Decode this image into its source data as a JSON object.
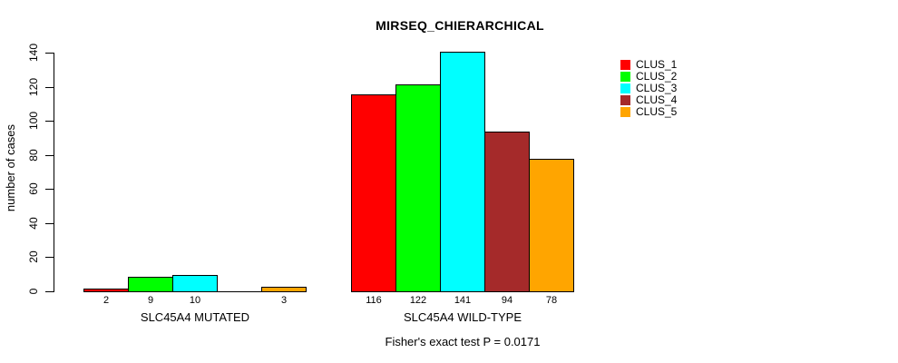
{
  "chart_data": {
    "type": "bar",
    "title": "MIRSEQ_CHIERARCHICAL",
    "ylabel": "number of cases",
    "xlabel": "",
    "ylim": [
      0,
      140
    ],
    "yticks": [
      0,
      20,
      40,
      60,
      80,
      100,
      120,
      140
    ],
    "grid": false,
    "legend_position": "top-right",
    "groups": [
      "SLC45A4 MUTATED",
      "SLC45A4 WILD-TYPE"
    ],
    "series": [
      {
        "name": "CLUS_1",
        "color": "#FF0000",
        "values": [
          2,
          116
        ]
      },
      {
        "name": "CLUS_2",
        "color": "#00FF00",
        "values": [
          9,
          122
        ]
      },
      {
        "name": "CLUS_3",
        "color": "#00FFFF",
        "values": [
          10,
          141
        ]
      },
      {
        "name": "CLUS_4",
        "color": "#A52A2A",
        "values": [
          0,
          94
        ]
      },
      {
        "name": "CLUS_5",
        "color": "#FFA500",
        "values": [
          3,
          78
        ]
      }
    ],
    "bar_value_labels": [
      [
        "2",
        "9",
        "10",
        "",
        "3"
      ],
      [
        "116",
        "122",
        "141",
        "94",
        "78"
      ]
    ],
    "annotation": "Fisher's exact test P = 0.0171",
    "colors": {
      "background": "#FFFFFF",
      "axis": "#000000",
      "bar_border": "#000000",
      "text": "#000000"
    }
  }
}
